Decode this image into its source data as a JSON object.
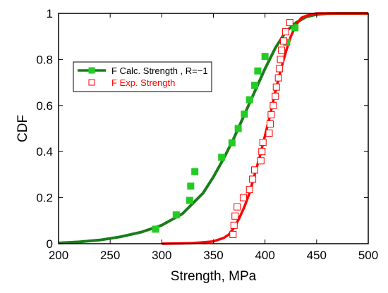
{
  "chart_data": {
    "type": "line",
    "title": "",
    "xlabel": "Strength, MPa",
    "ylabel": "CDF",
    "xlim": [
      200,
      500
    ],
    "ylim": [
      0,
      1
    ],
    "x_ticks": [
      200,
      250,
      300,
      350,
      400,
      450,
      500
    ],
    "y_ticks": [
      0,
      0.2,
      0.4,
      0.6,
      0.8,
      1
    ],
    "grid": false,
    "legend_position": "upper-left",
    "series": [
      {
        "name": "F Calc. Strength , R=−1",
        "color": "#1a7d1a",
        "marker": "filled-square",
        "curve": {
          "x": [
            200,
            220,
            240,
            260,
            280,
            300,
            320,
            340,
            350,
            360,
            370,
            380,
            390,
            400,
            410,
            420,
            430,
            440,
            450,
            460,
            470,
            480,
            500
          ],
          "y": [
            0.003,
            0.008,
            0.016,
            0.03,
            0.05,
            0.08,
            0.13,
            0.22,
            0.29,
            0.37,
            0.46,
            0.56,
            0.66,
            0.76,
            0.85,
            0.92,
            0.96,
            0.985,
            0.995,
            0.999,
            1.0,
            1.0,
            1.0
          ]
        },
        "points": [
          {
            "x": 294,
            "y": 0.063
          },
          {
            "x": 314,
            "y": 0.125
          },
          {
            "x": 327,
            "y": 0.188
          },
          {
            "x": 328,
            "y": 0.25
          },
          {
            "x": 332,
            "y": 0.313
          },
          {
            "x": 358,
            "y": 0.375
          },
          {
            "x": 368,
            "y": 0.438
          },
          {
            "x": 374,
            "y": 0.5
          },
          {
            "x": 380,
            "y": 0.563
          },
          {
            "x": 385,
            "y": 0.625
          },
          {
            "x": 390,
            "y": 0.688
          },
          {
            "x": 393,
            "y": 0.75
          },
          {
            "x": 400,
            "y": 0.813
          },
          {
            "x": 421,
            "y": 0.875
          },
          {
            "x": 429,
            "y": 0.938
          }
        ]
      },
      {
        "name": "F Exp. Strength",
        "color": "#ff0000",
        "marker": "open-square",
        "curve": {
          "x": [
            300,
            330,
            350,
            360,
            365,
            370,
            375,
            380,
            385,
            390,
            395,
            400,
            405,
            410,
            415,
            420,
            425,
            430,
            435,
            440,
            450,
            460,
            500
          ],
          "y": [
            0.0,
            0.002,
            0.01,
            0.025,
            0.04,
            0.07,
            0.11,
            0.16,
            0.22,
            0.3,
            0.38,
            0.47,
            0.56,
            0.66,
            0.75,
            0.83,
            0.9,
            0.95,
            0.98,
            0.99,
            1.0,
            1.0,
            1.0
          ]
        },
        "points": [
          {
            "x": 369,
            "y": 0.04
          },
          {
            "x": 370,
            "y": 0.08
          },
          {
            "x": 371,
            "y": 0.12
          },
          {
            "x": 373,
            "y": 0.16
          },
          {
            "x": 379,
            "y": 0.2
          },
          {
            "x": 385,
            "y": 0.235
          },
          {
            "x": 388,
            "y": 0.28
          },
          {
            "x": 390,
            "y": 0.32
          },
          {
            "x": 396,
            "y": 0.36
          },
          {
            "x": 397,
            "y": 0.4
          },
          {
            "x": 398,
            "y": 0.44
          },
          {
            "x": 404,
            "y": 0.48
          },
          {
            "x": 405,
            "y": 0.52
          },
          {
            "x": 406,
            "y": 0.56
          },
          {
            "x": 408,
            "y": 0.6
          },
          {
            "x": 410,
            "y": 0.64
          },
          {
            "x": 411,
            "y": 0.68
          },
          {
            "x": 413,
            "y": 0.72
          },
          {
            "x": 414,
            "y": 0.76
          },
          {
            "x": 415,
            "y": 0.8
          },
          {
            "x": 416,
            "y": 0.84
          },
          {
            "x": 418,
            "y": 0.88
          },
          {
            "x": 420,
            "y": 0.92
          },
          {
            "x": 424,
            "y": 0.96
          }
        ]
      }
    ]
  }
}
